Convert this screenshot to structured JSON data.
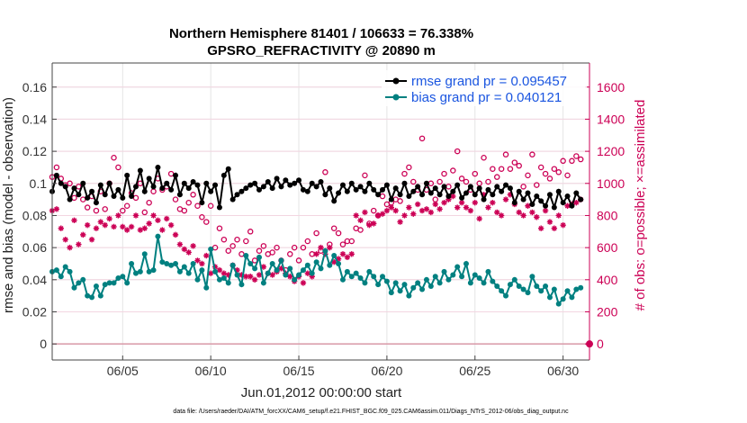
{
  "chart_data": {
    "type": "line",
    "title_line1": "Northern Hemisphere 81401 / 106633 = 76.338%",
    "title_line2": "GPSRO_REFRACTIVITY @ 20890 m",
    "xlabel": "Jun.01,2012 00:00:00 start",
    "ylabel_left": "rmse and bias (model - observation)",
    "ylabel_right": "# of obs: o=possible; ×=assimilated",
    "footer": "data file: /Users/raeder/DAI/ATM_forcXX/CAM6_setup/f.e21.FHIST_BGC.f09_025.CAM6assim.011/Diags_NTrS_2012-06/obs_diag_output.nc",
    "xlim": [
      1,
      31.5
    ],
    "ylim_left": [
      -0.01,
      0.175
    ],
    "ylim_right": [
      -100,
      1750
    ],
    "xticks": [
      5,
      10,
      15,
      20,
      25,
      30
    ],
    "xtick_labels": [
      "06/05",
      "06/10",
      "06/15",
      "06/20",
      "06/25",
      "06/30"
    ],
    "yticks_left": [
      0,
      0.02,
      0.04,
      0.06,
      0.08,
      0.1,
      0.12,
      0.14,
      0.16
    ],
    "ytick_labels_left": [
      "0",
      "0.02",
      "0.04",
      "0.06",
      "0.08",
      "0.1",
      "0.12",
      "0.14",
      "0.16"
    ],
    "yticks_right": [
      0,
      200,
      400,
      600,
      800,
      1000,
      1200,
      1400,
      1600
    ],
    "ytick_labels_right": [
      "0",
      "200",
      "400",
      "600",
      "800",
      "1000",
      "1200",
      "1400",
      "1600"
    ],
    "x": [
      1.0,
      1.25,
      1.5,
      1.75,
      2.0,
      2.25,
      2.5,
      2.75,
      3.0,
      3.25,
      3.5,
      3.75,
      4.0,
      4.25,
      4.5,
      4.75,
      5.0,
      5.25,
      5.5,
      5.75,
      6.0,
      6.25,
      6.5,
      6.75,
      7.0,
      7.25,
      7.5,
      7.75,
      8.0,
      8.25,
      8.5,
      8.75,
      9.0,
      9.25,
      9.5,
      9.75,
      10.0,
      10.25,
      10.5,
      10.75,
      11.0,
      11.25,
      11.5,
      11.75,
      12.0,
      12.25,
      12.5,
      12.75,
      13.0,
      13.25,
      13.5,
      13.75,
      14.0,
      14.25,
      14.5,
      14.75,
      15.0,
      15.25,
      15.5,
      15.75,
      16.0,
      16.25,
      16.5,
      16.75,
      17.0,
      17.25,
      17.5,
      17.75,
      18.0,
      18.25,
      18.5,
      18.75,
      19.0,
      19.25,
      19.5,
      19.75,
      20.0,
      20.25,
      20.5,
      20.75,
      21.0,
      21.25,
      21.5,
      21.75,
      22.0,
      22.25,
      22.5,
      22.75,
      23.0,
      23.25,
      23.5,
      23.75,
      24.0,
      24.25,
      24.5,
      24.75,
      25.0,
      25.25,
      25.5,
      25.75,
      26.0,
      26.25,
      26.5,
      26.75,
      27.0,
      27.25,
      27.5,
      27.75,
      28.0,
      28.25,
      28.5,
      28.75,
      29.0,
      29.25,
      29.5,
      29.75,
      30.0,
      30.25,
      30.5,
      30.75,
      31.0
    ],
    "series": [
      {
        "name": "rmse grand pr = 0.095457",
        "color": "#000000",
        "marker": "circle-filled",
        "values": [
          0.095,
          0.105,
          0.1,
          0.098,
          0.09,
          0.097,
          0.093,
          0.1,
          0.091,
          0.095,
          0.088,
          0.099,
          0.093,
          0.1,
          0.092,
          0.096,
          0.091,
          0.105,
          0.092,
          0.098,
          0.108,
          0.095,
          0.103,
          0.098,
          0.11,
          0.097,
          0.1,
          0.096,
          0.105,
          0.093,
          0.1,
          0.097,
          0.101,
          0.099,
          0.088,
          0.1,
          0.095,
          0.099,
          0.085,
          0.105,
          0.109,
          0.09,
          0.093,
          0.095,
          0.097,
          0.099,
          0.1,
          0.096,
          0.098,
          0.101,
          0.097,
          0.103,
          0.098,
          0.102,
          0.099,
          0.1,
          0.102,
          0.096,
          0.095,
          0.1,
          0.098,
          0.101,
          0.093,
          0.097,
          0.089,
          0.094,
          0.099,
          0.095,
          0.1,
          0.096,
          0.098,
          0.095,
          0.1,
          0.096,
          0.093,
          0.096,
          0.099,
          0.09,
          0.097,
          0.093,
          0.1,
          0.092,
          0.095,
          0.098,
          0.093,
          0.1,
          0.094,
          0.097,
          0.093,
          0.098,
          0.092,
          0.095,
          0.099,
          0.091,
          0.094,
          0.098,
          0.093,
          0.097,
          0.09,
          0.096,
          0.093,
          0.098,
          0.095,
          0.099,
          0.097,
          0.088,
          0.095,
          0.09,
          0.094,
          0.087,
          0.092,
          0.089,
          0.086,
          0.093,
          0.085,
          0.095,
          0.088,
          0.092,
          0.086,
          0.094,
          0.09
        ]
      },
      {
        "name": "bias grand pr = 0.040121",
        "color": "#008080",
        "marker": "circle-filled",
        "values": [
          0.045,
          0.046,
          0.042,
          0.048,
          0.045,
          0.035,
          0.038,
          0.04,
          0.03,
          0.029,
          0.036,
          0.03,
          0.037,
          0.038,
          0.038,
          0.041,
          0.042,
          0.038,
          0.05,
          0.044,
          0.045,
          0.056,
          0.045,
          0.046,
          0.067,
          0.051,
          0.05,
          0.049,
          0.05,
          0.045,
          0.048,
          0.044,
          0.05,
          0.04,
          0.046,
          0.035,
          0.059,
          0.045,
          0.04,
          0.041,
          0.038,
          0.049,
          0.043,
          0.037,
          0.055,
          0.05,
          0.047,
          0.054,
          0.038,
          0.044,
          0.05,
          0.046,
          0.052,
          0.043,
          0.047,
          0.04,
          0.043,
          0.046,
          0.049,
          0.044,
          0.051,
          0.047,
          0.058,
          0.049,
          0.055,
          0.05,
          0.04,
          0.045,
          0.042,
          0.044,
          0.041,
          0.038,
          0.045,
          0.042,
          0.037,
          0.042,
          0.039,
          0.032,
          0.038,
          0.033,
          0.037,
          0.03,
          0.035,
          0.038,
          0.034,
          0.04,
          0.036,
          0.042,
          0.038,
          0.045,
          0.04,
          0.043,
          0.048,
          0.042,
          0.05,
          0.038,
          0.043,
          0.041,
          0.038,
          0.045,
          0.039,
          0.036,
          0.033,
          0.03,
          0.037,
          0.04,
          0.036,
          0.034,
          0.032,
          0.042,
          0.036,
          0.033,
          0.036,
          0.029,
          0.034,
          0.025,
          0.028,
          0.033,
          0.029,
          0.034,
          0.035
        ]
      },
      {
        "name": "# of obs possible",
        "color": "#cc0055",
        "marker": "circle-open",
        "values": [
          1040,
          1100,
          1030,
          990,
          1000,
          910,
          980,
          900,
          850,
          920,
          830,
          950,
          840,
          1000,
          1160,
          1100,
          830,
          860,
          940,
          910,
          1000,
          820,
          880,
          950,
          1030,
          960,
          980,
          1060,
          900,
          840,
          830,
          880,
          930,
          860,
          790,
          760,
          860,
          600,
          720,
          650,
          580,
          610,
          650,
          560,
          640,
          700,
          520,
          580,
          610,
          560,
          570,
          600,
          520,
          460,
          560,
          600,
          520,
          600,
          640,
          560,
          690,
          580,
          1070,
          620,
          720,
          690,
          620,
          640,
          640,
          720,
          710,
          1050,
          750,
          830,
          800,
          920,
          870,
          880,
          900,
          890,
          1060,
          1100,
          1010,
          960,
          1280,
          960,
          1000,
          900,
          1010,
          1060,
          980,
          1080,
          1200,
          1030,
          1010,
          960,
          1060,
          1000,
          1160,
          1010,
          1090,
          1040,
          1090,
          1180,
          1090,
          1130,
          1110,
          980,
          1050,
          1180,
          990,
          1100,
          1060,
          1030,
          1090,
          1070,
          1140,
          1050,
          1140,
          1170,
          1150
        ]
      },
      {
        "name": "# of obs assimilated",
        "color": "#cc0055",
        "marker": "asterisk",
        "values": [
          830,
          840,
          720,
          650,
          600,
          770,
          620,
          680,
          740,
          650,
          720,
          760,
          740,
          780,
          730,
          800,
          730,
          710,
          730,
          800,
          710,
          720,
          750,
          800,
          770,
          710,
          780,
          740,
          680,
          620,
          590,
          570,
          610,
          520,
          500,
          550,
          440,
          480,
          460,
          440,
          430,
          490,
          460,
          430,
          420,
          420,
          400,
          430,
          480,
          440,
          430,
          450,
          470,
          440,
          420,
          390,
          420,
          380,
          440,
          420,
          560,
          600,
          560,
          600,
          510,
          530,
          560,
          540,
          560,
          800,
          770,
          820,
          740,
          750,
          800,
          810,
          830,
          850,
          830,
          760,
          800,
          850,
          810,
          870,
          830,
          840,
          820,
          870,
          840,
          880,
          900,
          920,
          850,
          880,
          850,
          830,
          880,
          780,
          930,
          850,
          880,
          820,
          800,
          900,
          930,
          870,
          820,
          800,
          860,
          820,
          790,
          720,
          830,
          760,
          720,
          800,
          740,
          860,
          870,
          880,
          900
        ]
      }
    ],
    "zero_marker_assimilated": 0,
    "legend": [
      {
        "label": "rmse grand pr = 0.095457",
        "color": "#000000"
      },
      {
        "label": "bias grand pr = 0.040121",
        "color": "#008080"
      }
    ],
    "grid": true,
    "legend_position": "top-right"
  }
}
